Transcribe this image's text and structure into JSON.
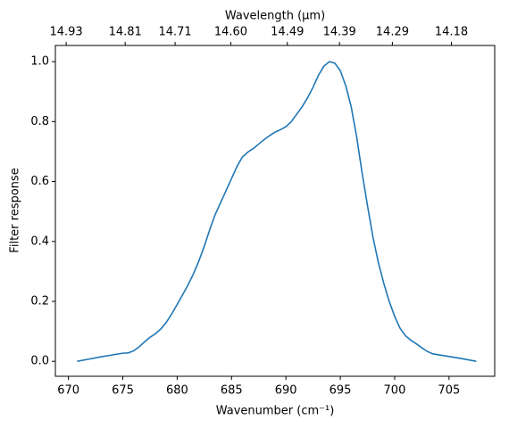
{
  "chart_data": {
    "type": "line",
    "xlabel": "Wavenumber (cm⁻¹)",
    "ylabel": "Filter response",
    "x2label": "Wavelength (μm)",
    "x": [
      670.8,
      672,
      673,
      674,
      675,
      675.5,
      676,
      676.5,
      677,
      677.5,
      678,
      678.5,
      679,
      679.5,
      680,
      680.5,
      681,
      681.5,
      682,
      682.5,
      683,
      683.5,
      684,
      684.5,
      685,
      685.5,
      686,
      686.5,
      687,
      687.5,
      688,
      688.5,
      689,
      689.5,
      690,
      690.5,
      691,
      691.5,
      692,
      692.5,
      693,
      693.5,
      694,
      694.5,
      695,
      695.5,
      696,
      696.5,
      697,
      697.5,
      698,
      698.5,
      699,
      699.5,
      700,
      700.5,
      701,
      701.5,
      702,
      702.5,
      703,
      703.5,
      704,
      705,
      706,
      707.5
    ],
    "series": [
      {
        "name": "Filter response",
        "color": "#1f77b4",
        "values": [
          0,
          0.008,
          0.015,
          0.021,
          0.027,
          0.028,
          0.035,
          0.048,
          0.065,
          0.08,
          0.092,
          0.108,
          0.13,
          0.158,
          0.19,
          0.222,
          0.255,
          0.292,
          0.335,
          0.385,
          0.44,
          0.49,
          0.53,
          0.57,
          0.61,
          0.65,
          0.682,
          0.698,
          0.71,
          0.725,
          0.74,
          0.753,
          0.765,
          0.773,
          0.783,
          0.8,
          0.825,
          0.85,
          0.88,
          0.915,
          0.955,
          0.985,
          1.0,
          0.995,
          0.97,
          0.92,
          0.85,
          0.75,
          0.63,
          0.52,
          0.415,
          0.33,
          0.26,
          0.2,
          0.15,
          0.11,
          0.085,
          0.07,
          0.058,
          0.045,
          0.033,
          0.025,
          0.022,
          0.016,
          0.01,
          0
        ]
      }
    ],
    "xlim": [
      668.8,
      709.2
    ],
    "ylim": [
      -0.05,
      1.054
    ],
    "xticks": [
      670,
      675,
      680,
      685,
      690,
      695,
      700,
      705
    ],
    "yticks": [
      {
        "value": 0,
        "label": "0.0"
      },
      0.2,
      0.4,
      0.6,
      0.8,
      {
        "value": 1,
        "label": "1.0"
      }
    ],
    "x2ticks": [
      14.93,
      14.81,
      14.71,
      {
        "value": 14.6,
        "label": "14.60"
      },
      14.49,
      14.39,
      14.29,
      14.18
    ]
  }
}
